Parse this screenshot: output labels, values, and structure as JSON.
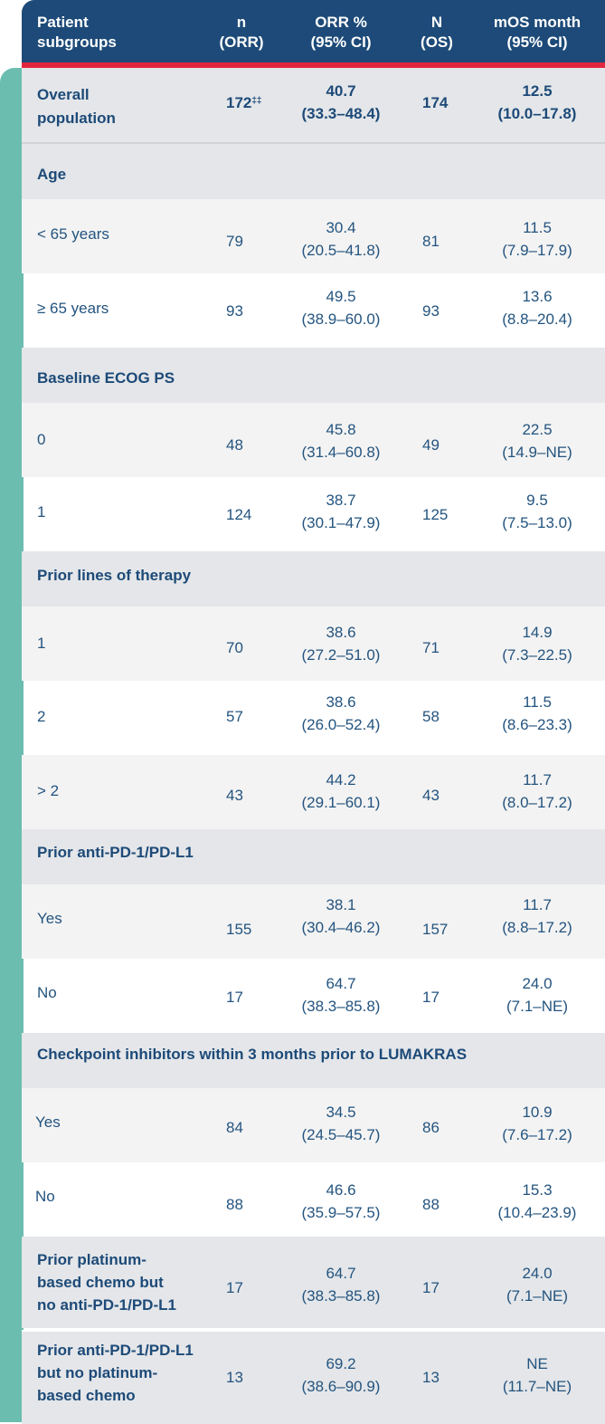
{
  "header": {
    "col1": [
      "Patient",
      "subgroups"
    ],
    "col2": [
      "n",
      "(ORR)"
    ],
    "col3": [
      "ORR %",
      "(95% CI)"
    ],
    "col4": [
      "N",
      "(OS)"
    ],
    "col5": [
      "mOS month",
      "(95% CI)"
    ]
  },
  "overall": {
    "label": [
      "Overall",
      "population"
    ],
    "n": "172",
    "n_mark": "‡‡",
    "orr": "40.7",
    "orr_ci": "(33.3–48.4)",
    "N": "174",
    "mos": "12.5",
    "mos_ci": "(10.0–17.8)"
  },
  "sections": {
    "age": "Age",
    "ecog": "Baseline ECOG PS",
    "prior_lines": "Prior lines of therapy",
    "prior_pd1": "Prior anti-PD-1/PD-L1",
    "checkpoint": "Checkpoint inhibitors within 3 months prior to LUMAKRAS"
  },
  "rows": {
    "age_lt65": {
      "label": "< 65 years",
      "n": "79",
      "orr": "30.4",
      "orr_ci": "(20.5–41.8)",
      "N": "81",
      "mos": "11.5",
      "mos_ci": "(7.9–17.9)"
    },
    "age_ge65": {
      "label": "≥ 65 years",
      "n": "93",
      "orr": "49.5",
      "orr_ci": "(38.9–60.0)",
      "N": "93",
      "mos": "13.6",
      "mos_ci": "(8.8–20.4)"
    },
    "ecog_0": {
      "label": "0",
      "n": "48",
      "orr": "45.8",
      "orr_ci": "(31.4–60.8)",
      "N": "49",
      "mos": "22.5",
      "mos_ci": "(14.9–NE)"
    },
    "ecog_1": {
      "label": "1",
      "n": "124",
      "orr": "38.7",
      "orr_ci": "(30.1–47.9)",
      "N": "125",
      "mos": "9.5",
      "mos_ci": "(7.5–13.0)"
    },
    "lines_1": {
      "label": "1",
      "n": "70",
      "orr": "38.6",
      "orr_ci": "(27.2–51.0)",
      "N": "71",
      "mos": "14.9",
      "mos_ci": "(7.3–22.5)"
    },
    "lines_2": {
      "label": "2",
      "n": "57",
      "orr": "38.6",
      "orr_ci": "(26.0–52.4)",
      "N": "58",
      "mos": "11.5",
      "mos_ci": "(8.6–23.3)"
    },
    "lines_gt2": {
      "label": "> 2",
      "n": "43",
      "orr": "44.2",
      "orr_ci": "(29.1–60.1)",
      "N": "43",
      "mos": "11.7",
      "mos_ci": "(8.0–17.2)"
    },
    "pd1_yes": {
      "label": "Yes",
      "n": "155",
      "orr": "38.1",
      "orr_ci": "(30.4–46.2)",
      "N": "157",
      "mos": "11.7",
      "mos_ci": "(8.8–17.2)"
    },
    "pd1_no": {
      "label": "No",
      "n": "17",
      "orr": "64.7",
      "orr_ci": "(38.3–85.8)",
      "N": "17",
      "mos": "24.0",
      "mos_ci": "(7.1–NE)"
    },
    "cp_yes": {
      "label": "Yes",
      "n": "84",
      "orr": "34.5",
      "orr_ci": "(24.5–45.7)",
      "N": "86",
      "mos": "10.9",
      "mos_ci": "(7.6–17.2)"
    },
    "cp_no": {
      "label": "No",
      "n": "88",
      "orr": "46.6",
      "orr_ci": "(35.9–57.5)",
      "N": "88",
      "mos": "15.3",
      "mos_ci": "(10.4–23.9)"
    },
    "plat_no_pd1": {
      "label": [
        "Prior platinum-",
        "based chemo but",
        "no anti-PD-1/PD-L1"
      ],
      "n": "17",
      "orr": "64.7",
      "orr_ci": "(38.3–85.8)",
      "N": "17",
      "mos": "24.0",
      "mos_ci": "(7.1–NE)"
    },
    "pd1_no_plat": {
      "label": [
        "Prior anti-PD-1/PD-L1",
        "but no platinum-",
        "based chemo"
      ],
      "n": "13",
      "orr": "69.2",
      "orr_ci": "(38.6–90.9)",
      "N": "13",
      "mos": "NE",
      "mos_ci": "(11.7–NE)"
    }
  }
}
